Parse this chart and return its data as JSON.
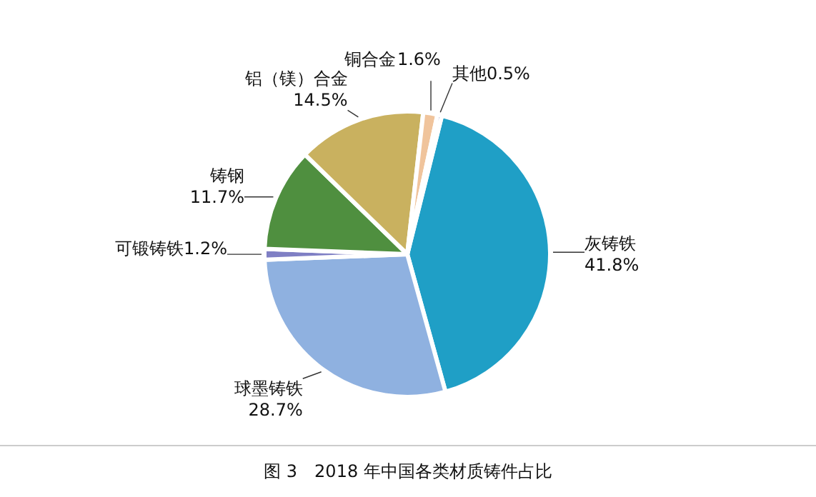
{
  "chart_data": {
    "type": "pie",
    "title": "图 3　2018 年中国各类材质铸件占比",
    "categories": [
      "灰铸铁",
      "球墨铸铁",
      "可锻铸铁",
      "铸钢",
      "铝（镁）合金",
      "铜合金",
      "其他"
    ],
    "values": [
      41.8,
      28.7,
      1.2,
      11.7,
      14.5,
      1.6,
      0.5
    ],
    "colors": [
      "#1f9fc6",
      "#8fb1e0",
      "#7f7fc4",
      "#4f8f3f",
      "#c9b15f",
      "#f0c49c",
      "#2e2e86"
    ],
    "value_labels": [
      "41.8%",
      "28.7%",
      "1.2%",
      "11.7%",
      "14.5%",
      "1.6%",
      "0.5%"
    ]
  }
}
